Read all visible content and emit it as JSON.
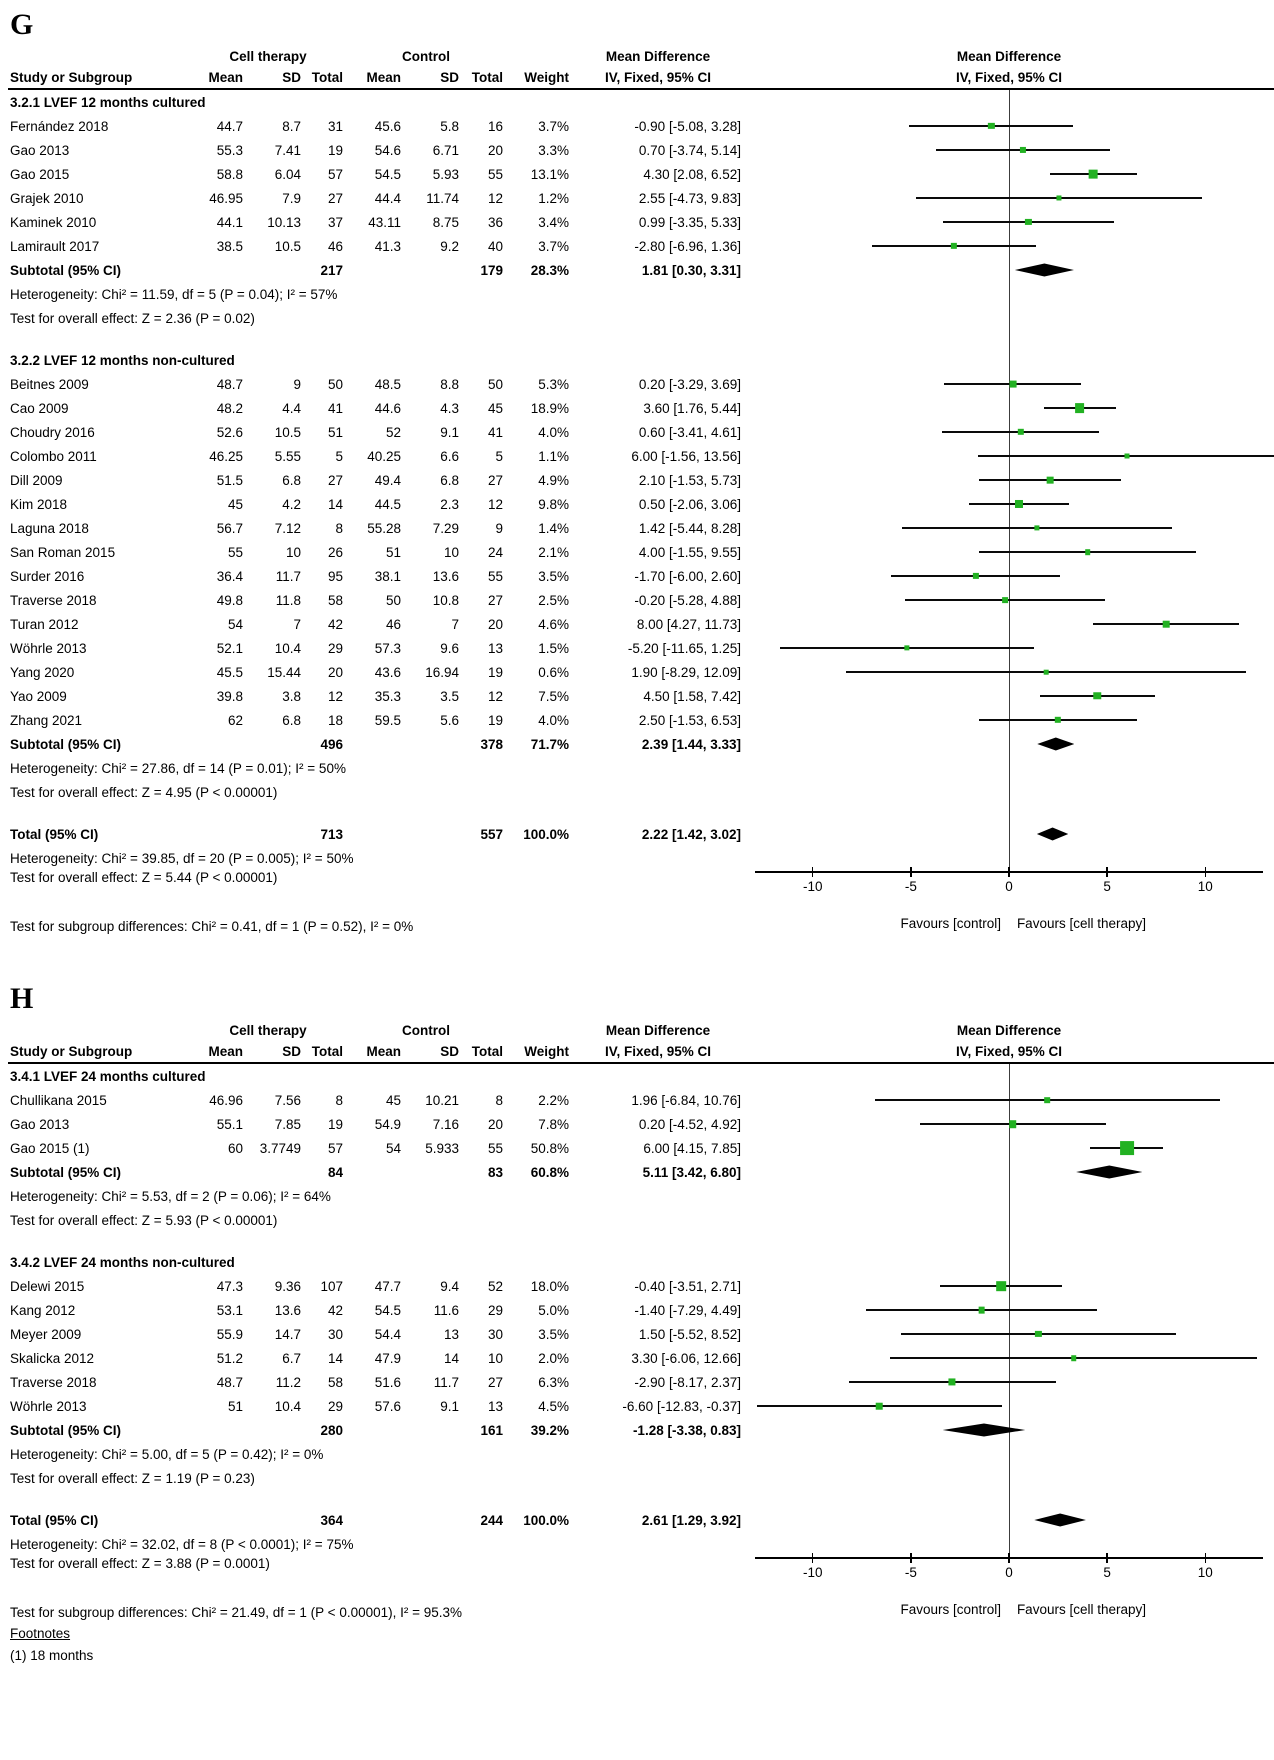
{
  "colors": {
    "marker_green": "#22b122",
    "diamond_black": "#000000",
    "line_black": "#0a0a0a"
  },
  "chart_data": [
    {
      "type": "forest",
      "panel": "G",
      "group1_label": "Cell therapy",
      "group2_label": "Control",
      "md_label": "Mean Difference",
      "method_label": "IV, Fixed, 95% CI",
      "col_headers": [
        "Study or Subgroup",
        "Mean",
        "SD",
        "Total",
        "Mean",
        "SD",
        "Total",
        "Weight",
        "IV, Fixed, 95% CI"
      ],
      "axis": {
        "range": [
          -13.5,
          13.5
        ],
        "ticks": [
          -10,
          -5,
          0,
          5,
          10
        ],
        "favours_left": "Favours [control]",
        "favours_right": "Favours [cell therapy]"
      },
      "rows": [
        {
          "t": "subgroup",
          "label": "3.2.1 LVEF 12 months cultured"
        },
        {
          "t": "study",
          "study": "Fernández 2018",
          "m1": "44.7",
          "sd1": "8.7",
          "n1": "31",
          "m2": "45.6",
          "sd2": "5.8",
          "n2": "16",
          "w": "3.7%",
          "ci": "-0.90 [-5.08, 3.28]",
          "md": -0.9,
          "lo": -5.08,
          "hi": 3.28,
          "wt": 3.7
        },
        {
          "t": "study",
          "study": "Gao 2013",
          "m1": "55.3",
          "sd1": "7.41",
          "n1": "19",
          "m2": "54.6",
          "sd2": "6.71",
          "n2": "20",
          "w": "3.3%",
          "ci": "0.70 [-3.74, 5.14]",
          "md": 0.7,
          "lo": -3.74,
          "hi": 5.14,
          "wt": 3.3
        },
        {
          "t": "study",
          "study": "Gao 2015",
          "m1": "58.8",
          "sd1": "6.04",
          "n1": "57",
          "m2": "54.5",
          "sd2": "5.93",
          "n2": "55",
          "w": "13.1%",
          "ci": "4.30 [2.08, 6.52]",
          "md": 4.3,
          "lo": 2.08,
          "hi": 6.52,
          "wt": 13.1
        },
        {
          "t": "study",
          "study": "Grajek 2010",
          "m1": "46.95",
          "sd1": "7.9",
          "n1": "27",
          "m2": "44.4",
          "sd2": "11.74",
          "n2": "12",
          "w": "1.2%",
          "ci": "2.55 [-4.73, 9.83]",
          "md": 2.55,
          "lo": -4.73,
          "hi": 9.83,
          "wt": 1.2
        },
        {
          "t": "study",
          "study": "Kaminek 2010",
          "m1": "44.1",
          "sd1": "10.13",
          "n1": "37",
          "m2": "43.11",
          "sd2": "8.75",
          "n2": "36",
          "w": "3.4%",
          "ci": "0.99 [-3.35, 5.33]",
          "md": 0.99,
          "lo": -3.35,
          "hi": 5.33,
          "wt": 3.4
        },
        {
          "t": "study",
          "study": "Lamirault 2017",
          "m1": "38.5",
          "sd1": "10.5",
          "n1": "46",
          "m2": "41.3",
          "sd2": "9.2",
          "n2": "40",
          "w": "3.7%",
          "ci": "-2.80 [-6.96, 1.36]",
          "md": -2.8,
          "lo": -6.96,
          "hi": 1.36,
          "wt": 3.7
        },
        {
          "t": "subtotal",
          "label": "Subtotal (95% CI)",
          "n1": "217",
          "n2": "179",
          "w": "28.3%",
          "ci": "1.81 [0.30, 3.31]",
          "md": 1.81,
          "lo": 0.3,
          "hi": 3.31
        },
        {
          "t": "text",
          "text": "Heterogeneity: Chi² = 11.59, df = 5 (P = 0.04); I² = 57%"
        },
        {
          "t": "text",
          "text": "Test for overall effect: Z = 2.36 (P = 0.02)"
        },
        {
          "t": "spacer"
        },
        {
          "t": "subgroup",
          "label": "3.2.2 LVEF 12 months non-cultured"
        },
        {
          "t": "study",
          "study": "Beitnes 2009",
          "m1": "48.7",
          "sd1": "9",
          "n1": "50",
          "m2": "48.5",
          "sd2": "8.8",
          "n2": "50",
          "w": "5.3%",
          "ci": "0.20 [-3.29, 3.69]",
          "md": 0.2,
          "lo": -3.29,
          "hi": 3.69,
          "wt": 5.3
        },
        {
          "t": "study",
          "study": "Cao 2009",
          "m1": "48.2",
          "sd1": "4.4",
          "n1": "41",
          "m2": "44.6",
          "sd2": "4.3",
          "n2": "45",
          "w": "18.9%",
          "ci": "3.60 [1.76, 5.44]",
          "md": 3.6,
          "lo": 1.76,
          "hi": 5.44,
          "wt": 18.9
        },
        {
          "t": "study",
          "study": "Choudry 2016",
          "m1": "52.6",
          "sd1": "10.5",
          "n1": "51",
          "m2": "52",
          "sd2": "9.1",
          "n2": "41",
          "w": "4.0%",
          "ci": "0.60 [-3.41, 4.61]",
          "md": 0.6,
          "lo": -3.41,
          "hi": 4.61,
          "wt": 4.0
        },
        {
          "t": "study",
          "study": "Colombo 2011",
          "m1": "46.25",
          "sd1": "5.55",
          "n1": "5",
          "m2": "40.25",
          "sd2": "6.6",
          "n2": "5",
          "w": "1.1%",
          "ci": "6.00 [-1.56, 13.56]",
          "md": 6.0,
          "lo": -1.56,
          "hi": 13.56,
          "wt": 1.1
        },
        {
          "t": "study",
          "study": "Dill 2009",
          "m1": "51.5",
          "sd1": "6.8",
          "n1": "27",
          "m2": "49.4",
          "sd2": "6.8",
          "n2": "27",
          "w": "4.9%",
          "ci": "2.10 [-1.53, 5.73]",
          "md": 2.1,
          "lo": -1.53,
          "hi": 5.73,
          "wt": 4.9
        },
        {
          "t": "study",
          "study": "Kim 2018",
          "m1": "45",
          "sd1": "4.2",
          "n1": "14",
          "m2": "44.5",
          "sd2": "2.3",
          "n2": "12",
          "w": "9.8%",
          "ci": "0.50 [-2.06, 3.06]",
          "md": 0.5,
          "lo": -2.06,
          "hi": 3.06,
          "wt": 9.8
        },
        {
          "t": "study",
          "study": "Laguna 2018",
          "m1": "56.7",
          "sd1": "7.12",
          "n1": "8",
          "m2": "55.28",
          "sd2": "7.29",
          "n2": "9",
          "w": "1.4%",
          "ci": "1.42 [-5.44, 8.28]",
          "md": 1.42,
          "lo": -5.44,
          "hi": 8.28,
          "wt": 1.4
        },
        {
          "t": "study",
          "study": "San Roman 2015",
          "m1": "55",
          "sd1": "10",
          "n1": "26",
          "m2": "51",
          "sd2": "10",
          "n2": "24",
          "w": "2.1%",
          "ci": "4.00 [-1.55, 9.55]",
          "md": 4.0,
          "lo": -1.55,
          "hi": 9.55,
          "wt": 2.1
        },
        {
          "t": "study",
          "study": "Surder 2016",
          "m1": "36.4",
          "sd1": "11.7",
          "n1": "95",
          "m2": "38.1",
          "sd2": "13.6",
          "n2": "55",
          "w": "3.5%",
          "ci": "-1.70 [-6.00, 2.60]",
          "md": -1.7,
          "lo": -6.0,
          "hi": 2.6,
          "wt": 3.5
        },
        {
          "t": "study",
          "study": "Traverse 2018",
          "m1": "49.8",
          "sd1": "11.8",
          "n1": "58",
          "m2": "50",
          "sd2": "10.8",
          "n2": "27",
          "w": "2.5%",
          "ci": "-0.20 [-5.28, 4.88]",
          "md": -0.2,
          "lo": -5.28,
          "hi": 4.88,
          "wt": 2.5
        },
        {
          "t": "study",
          "study": "Turan 2012",
          "m1": "54",
          "sd1": "7",
          "n1": "42",
          "m2": "46",
          "sd2": "7",
          "n2": "20",
          "w": "4.6%",
          "ci": "8.00 [4.27, 11.73]",
          "md": 8.0,
          "lo": 4.27,
          "hi": 11.73,
          "wt": 4.6
        },
        {
          "t": "study",
          "study": "Wöhrle 2013",
          "m1": "52.1",
          "sd1": "10.4",
          "n1": "29",
          "m2": "57.3",
          "sd2": "9.6",
          "n2": "13",
          "w": "1.5%",
          "ci": "-5.20 [-11.65, 1.25]",
          "md": -5.2,
          "lo": -11.65,
          "hi": 1.25,
          "wt": 1.5
        },
        {
          "t": "study",
          "study": "Yang 2020",
          "m1": "45.5",
          "sd1": "15.44",
          "n1": "20",
          "m2": "43.6",
          "sd2": "16.94",
          "n2": "19",
          "w": "0.6%",
          "ci": "1.90 [-8.29, 12.09]",
          "md": 1.9,
          "lo": -8.29,
          "hi": 12.09,
          "wt": 0.6
        },
        {
          "t": "study",
          "study": "Yao 2009",
          "m1": "39.8",
          "sd1": "3.8",
          "n1": "12",
          "m2": "35.3",
          "sd2": "3.5",
          "n2": "12",
          "w": "7.5%",
          "ci": "4.50 [1.58, 7.42]",
          "md": 4.5,
          "lo": 1.58,
          "hi": 7.42,
          "wt": 7.5
        },
        {
          "t": "study",
          "study": "Zhang 2021",
          "m1": "62",
          "sd1": "6.8",
          "n1": "18",
          "m2": "59.5",
          "sd2": "5.6",
          "n2": "19",
          "w": "4.0%",
          "ci": "2.50 [-1.53, 6.53]",
          "md": 2.5,
          "lo": -1.53,
          "hi": 6.53,
          "wt": 4.0
        },
        {
          "t": "subtotal",
          "label": "Subtotal (95% CI)",
          "n1": "496",
          "n2": "378",
          "w": "71.7%",
          "ci": "2.39 [1.44, 3.33]",
          "md": 2.39,
          "lo": 1.44,
          "hi": 3.33
        },
        {
          "t": "text",
          "text": "Heterogeneity: Chi² = 27.86, df = 14 (P = 0.01); I² = 50%"
        },
        {
          "t": "text",
          "text": "Test for overall effect: Z = 4.95 (P < 0.00001)"
        },
        {
          "t": "spacer"
        },
        {
          "t": "total",
          "label": "Total (95% CI)",
          "n1": "713",
          "n2": "557",
          "w": "100.0%",
          "ci": "2.22 [1.42, 3.02]",
          "md": 2.22,
          "lo": 1.42,
          "hi": 3.02
        },
        {
          "t": "text",
          "text": "Heterogeneity: Chi² = 39.85, df = 20 (P = 0.005); I² = 50%"
        },
        {
          "t": "text",
          "text": "Test for overall effect: Z = 5.44 (P < 0.00001)",
          "plot": "axis"
        },
        {
          "t": "text",
          "text": "Test for subgroup differences: Chi² = 0.41, df = 1 (P = 0.52), I² = 0%",
          "plot": "labels"
        }
      ]
    },
    {
      "type": "forest",
      "panel": "H",
      "group1_label": "Cell therapy",
      "group2_label": "Control",
      "md_label": "Mean Difference",
      "method_label": "IV, Fixed, 95% CI",
      "col_headers": [
        "Study or Subgroup",
        "Mean",
        "SD",
        "Total",
        "Mean",
        "SD",
        "Total",
        "Weight",
        "IV, Fixed, 95% CI"
      ],
      "axis": {
        "range": [
          -13.5,
          13.5
        ],
        "ticks": [
          -10,
          -5,
          0,
          5,
          10
        ],
        "favours_left": "Favours [control]",
        "favours_right": "Favours [cell therapy]"
      },
      "rows": [
        {
          "t": "subgroup",
          "label": "3.4.1 LVEF 24 months cultured"
        },
        {
          "t": "study",
          "study": "Chullikana 2015",
          "m1": "46.96",
          "sd1": "7.56",
          "n1": "8",
          "m2": "45",
          "sd2": "10.21",
          "n2": "8",
          "w": "2.2%",
          "ci": "1.96 [-6.84, 10.76]",
          "md": 1.96,
          "lo": -6.84,
          "hi": 10.76,
          "wt": 2.2
        },
        {
          "t": "study",
          "study": "Gao 2013",
          "m1": "55.1",
          "sd1": "7.85",
          "n1": "19",
          "m2": "54.9",
          "sd2": "7.16",
          "n2": "20",
          "w": "7.8%",
          "ci": "0.20 [-4.52, 4.92]",
          "md": 0.2,
          "lo": -4.52,
          "hi": 4.92,
          "wt": 7.8
        },
        {
          "t": "study",
          "study": "Gao 2015 (1)",
          "m1": "60",
          "sd1": "3.7749",
          "n1": "57",
          "m2": "54",
          "sd2": "5.933",
          "n2": "55",
          "w": "50.8%",
          "ci": "6.00 [4.15, 7.85]",
          "md": 6.0,
          "lo": 4.15,
          "hi": 7.85,
          "wt": 50.8
        },
        {
          "t": "subtotal",
          "label": "Subtotal (95% CI)",
          "n1": "84",
          "n2": "83",
          "w": "60.8%",
          "ci": "5.11 [3.42, 6.80]",
          "md": 5.11,
          "lo": 3.42,
          "hi": 6.8
        },
        {
          "t": "text",
          "text": "Heterogeneity: Chi² = 5.53, df = 2 (P = 0.06); I² = 64%"
        },
        {
          "t": "text",
          "text": "Test for overall effect: Z = 5.93 (P < 0.00001)"
        },
        {
          "t": "spacer"
        },
        {
          "t": "subgroup",
          "label": "3.4.2 LVEF 24 months non-cultured"
        },
        {
          "t": "study",
          "study": "Delewi 2015",
          "m1": "47.3",
          "sd1": "9.36",
          "n1": "107",
          "m2": "47.7",
          "sd2": "9.4",
          "n2": "52",
          "w": "18.0%",
          "ci": "-0.40 [-3.51, 2.71]",
          "md": -0.4,
          "lo": -3.51,
          "hi": 2.71,
          "wt": 18.0
        },
        {
          "t": "study",
          "study": "Kang 2012",
          "m1": "53.1",
          "sd1": "13.6",
          "n1": "42",
          "m2": "54.5",
          "sd2": "11.6",
          "n2": "29",
          "w": "5.0%",
          "ci": "-1.40 [-7.29, 4.49]",
          "md": -1.4,
          "lo": -7.29,
          "hi": 4.49,
          "wt": 5.0
        },
        {
          "t": "study",
          "study": "Meyer 2009",
          "m1": "55.9",
          "sd1": "14.7",
          "n1": "30",
          "m2": "54.4",
          "sd2": "13",
          "n2": "30",
          "w": "3.5%",
          "ci": "1.50 [-5.52, 8.52]",
          "md": 1.5,
          "lo": -5.52,
          "hi": 8.52,
          "wt": 3.5
        },
        {
          "t": "study",
          "study": "Skalicka 2012",
          "m1": "51.2",
          "sd1": "6.7",
          "n1": "14",
          "m2": "47.9",
          "sd2": "14",
          "n2": "10",
          "w": "2.0%",
          "ci": "3.30 [-6.06, 12.66]",
          "md": 3.3,
          "lo": -6.06,
          "hi": 12.66,
          "wt": 2.0
        },
        {
          "t": "study",
          "study": "Traverse 2018",
          "m1": "48.7",
          "sd1": "11.2",
          "n1": "58",
          "m2": "51.6",
          "sd2": "11.7",
          "n2": "27",
          "w": "6.3%",
          "ci": "-2.90 [-8.17, 2.37]",
          "md": -2.9,
          "lo": -8.17,
          "hi": 2.37,
          "wt": 6.3
        },
        {
          "t": "study",
          "study": "Wöhrle 2013",
          "m1": "51",
          "sd1": "10.4",
          "n1": "29",
          "m2": "57.6",
          "sd2": "9.1",
          "n2": "13",
          "w": "4.5%",
          "ci": "-6.60 [-12.83, -0.37]",
          "md": -6.6,
          "lo": -12.83,
          "hi": -0.37,
          "wt": 4.5
        },
        {
          "t": "subtotal",
          "label": "Subtotal (95% CI)",
          "n1": "280",
          "n2": "161",
          "w": "39.2%",
          "ci": "-1.28 [-3.38, 0.83]",
          "md": -1.28,
          "lo": -3.38,
          "hi": 0.83
        },
        {
          "t": "text",
          "text": "Heterogeneity: Chi² = 5.00, df = 5 (P = 0.42); I² = 0%"
        },
        {
          "t": "text",
          "text": "Test for overall effect: Z = 1.19 (P = 0.23)"
        },
        {
          "t": "spacer"
        },
        {
          "t": "total",
          "label": "Total (95% CI)",
          "n1": "364",
          "n2": "244",
          "w": "100.0%",
          "ci": "2.61 [1.29, 3.92]",
          "md": 2.61,
          "lo": 1.29,
          "hi": 3.92
        },
        {
          "t": "text",
          "text": "Heterogeneity: Chi² = 32.02, df = 8 (P < 0.0001); I² = 75%"
        },
        {
          "t": "text",
          "text": "Test for overall effect: Z = 3.88 (P = 0.0001)",
          "plot": "axis"
        },
        {
          "t": "text",
          "text": "Test for subgroup differences: Chi² = 21.49, df = 1 (P < 0.00001), I² = 95.3%",
          "plot": "labels"
        },
        {
          "t": "fnote-title",
          "text": "Footnotes"
        },
        {
          "t": "fnote",
          "text": "(1) 18 months"
        }
      ]
    }
  ]
}
